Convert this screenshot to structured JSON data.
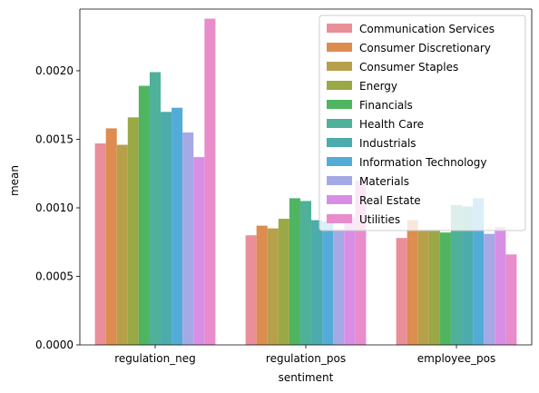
{
  "chart_data": {
    "type": "bar",
    "title": "",
    "xlabel": "sentiment",
    "ylabel": "mean",
    "categories": [
      "regulation_neg",
      "regulation_pos",
      "employee_pos"
    ],
    "ylim": [
      0,
      0.00245
    ],
    "yticks": [
      0.0,
      0.0005,
      0.001,
      0.0015,
      0.002
    ],
    "ytick_labels": [
      "0.0000",
      "0.0005",
      "0.0010",
      "0.0015",
      "0.0020"
    ],
    "grid": false,
    "legend_position": "top-right",
    "series": [
      {
        "name": "Communication Services",
        "color": "#ea8f9a",
        "values": [
          0.00147,
          0.0008,
          0.00078
        ]
      },
      {
        "name": "Consumer Discretionary",
        "color": "#dc8d4f",
        "values": [
          0.00158,
          0.00087,
          0.00091
        ]
      },
      {
        "name": "Consumer Staples",
        "color": "#b6a04a",
        "values": [
          0.00146,
          0.00085,
          0.00084
        ]
      },
      {
        "name": "Energy",
        "color": "#9aa845",
        "values": [
          0.00166,
          0.00092,
          0.00084
        ]
      },
      {
        "name": "Financials",
        "color": "#4fb561",
        "values": [
          0.00189,
          0.00107,
          0.00082
        ]
      },
      {
        "name": "Health Care",
        "color": "#4fb19a",
        "values": [
          0.00199,
          0.00105,
          0.00102
        ]
      },
      {
        "name": "Industrials",
        "color": "#4cabab",
        "values": [
          0.0017,
          0.00091,
          0.00101
        ]
      },
      {
        "name": "Information Technology",
        "color": "#53acd8",
        "values": [
          0.00173,
          0.0009,
          0.00107
        ]
      },
      {
        "name": "Materials",
        "color": "#a5a9e6",
        "values": [
          0.00155,
          0.00084,
          0.00081
        ]
      },
      {
        "name": "Real Estate",
        "color": "#d98ee6",
        "values": [
          0.00137,
          0.00093,
          0.00086
        ]
      },
      {
        "name": "Utilities",
        "color": "#e88ccc",
        "values": [
          0.00238,
          0.0012,
          0.00066
        ]
      }
    ]
  }
}
